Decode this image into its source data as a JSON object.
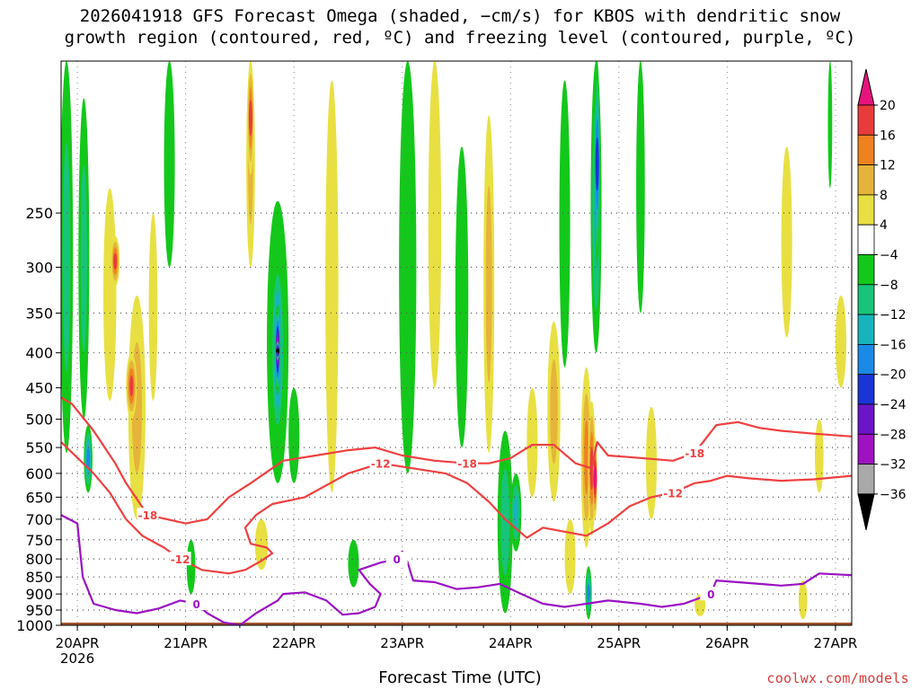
{
  "title": {
    "line1": "2026041918 GFS Forecast Omega (shaded, −cm/s) for KBOS with dendritic snow",
    "line2": "growth region (contoured, red, ºC) and freezing level (contoured, purple, ºC)"
  },
  "credit": "coolwx.com/models",
  "colors": {
    "omega_bins": [
      {
        "from": 20,
        "to": 24,
        "color": "#e8137c"
      },
      {
        "from": 16,
        "to": 20,
        "color": "#ea3b3b"
      },
      {
        "from": 12,
        "to": 16,
        "color": "#ee8220"
      },
      {
        "from": 8,
        "to": 12,
        "color": "#e6b43a"
      },
      {
        "from": 4,
        "to": 8,
        "color": "#e8e042"
      },
      {
        "from": -4,
        "to": 4,
        "color": "#ffffff"
      },
      {
        "from": -8,
        "to": -4,
        "color": "#13c81a"
      },
      {
        "from": -12,
        "to": -8,
        "color": "#18c47a"
      },
      {
        "from": -16,
        "to": -12,
        "color": "#17b4be"
      },
      {
        "from": -20,
        "to": -16,
        "color": "#1b8ae6"
      },
      {
        "from": -24,
        "to": -20,
        "color": "#1a35d6"
      },
      {
        "from": -28,
        "to": -24,
        "color": "#6a16c8"
      },
      {
        "from": -32,
        "to": -28,
        "color": "#9e12c2"
      },
      {
        "from": -36,
        "to": -32,
        "color": "#a9a9a9"
      },
      {
        "from": -40,
        "to": -36,
        "color": "#000000"
      }
    ],
    "dgz": "#ee4040",
    "freezing": "#9a12c2",
    "ground": "#a0522d"
  },
  "chart_data": {
    "type": "heatmap",
    "title": "2026041918 GFS Forecast Omega (shaded, −cm/s) for KBOS with dendritic snow growth region (contoured, red, ºC) and freezing level (contoured, purple, ºC)",
    "xlabel": "Forecast Time (UTC)",
    "ylabel": "",
    "x_unit": "days since 20APR 00Z",
    "x_range": [
      -0.15,
      7.15
    ],
    "y_unit": "hPa",
    "y_range": [
      1000,
      150
    ],
    "y_ticks": [
      "250",
      "300",
      "350",
      "400",
      "450",
      "500",
      "550",
      "600",
      "650",
      "700",
      "750",
      "800",
      "850",
      "900",
      "950",
      "1000"
    ],
    "x_ticks": [
      {
        "day": 0,
        "label": "20APR",
        "sub": "2026"
      },
      {
        "day": 1,
        "label": "21APR",
        "sub": ""
      },
      {
        "day": 2,
        "label": "22APR",
        "sub": ""
      },
      {
        "day": 3,
        "label": "23APR",
        "sub": ""
      },
      {
        "day": 4,
        "label": "24APR",
        "sub": ""
      },
      {
        "day": 5,
        "label": "25APR",
        "sub": ""
      },
      {
        "day": 6,
        "label": "26APR",
        "sub": ""
      },
      {
        "day": 7,
        "label": "27APR",
        "sub": ""
      }
    ],
    "colorbar_labels": [
      "20",
      "16",
      "12",
      "8",
      "4",
      "−4",
      "−8",
      "−12",
      "−16",
      "−20",
      "−24",
      "−28",
      "−32",
      "−36"
    ],
    "omega_features": [
      {
        "day": -0.1,
        "p_top": 150,
        "p_bot": 560,
        "hw": 0.06,
        "value": -10
      },
      {
        "day": 0.06,
        "p_top": 170,
        "p_bot": 500,
        "hw": 0.05,
        "value": -9
      },
      {
        "day": 0.1,
        "p_top": 510,
        "p_bot": 640,
        "hw": 0.04,
        "value": -20
      },
      {
        "day": 0.3,
        "p_top": 230,
        "p_bot": 470,
        "hw": 0.06,
        "value": 8
      },
      {
        "day": 0.35,
        "p_top": 270,
        "p_bot": 320,
        "hw": 0.04,
        "value": 18
      },
      {
        "day": 0.55,
        "p_top": 330,
        "p_bot": 700,
        "hw": 0.08,
        "value": 10
      },
      {
        "day": 0.5,
        "p_top": 400,
        "p_bot": 500,
        "hw": 0.05,
        "value": 17
      },
      {
        "day": 0.7,
        "p_top": 250,
        "p_bot": 470,
        "hw": 0.04,
        "value": 6
      },
      {
        "day": 0.85,
        "p_top": 150,
        "p_bot": 300,
        "hw": 0.05,
        "value": -6
      },
      {
        "day": 1.05,
        "p_top": 750,
        "p_bot": 900,
        "hw": 0.04,
        "value": -7
      },
      {
        "day": 1.6,
        "p_top": 150,
        "p_bot": 300,
        "hw": 0.04,
        "value": 10
      },
      {
        "day": 1.6,
        "p_top": 150,
        "p_bot": 220,
        "hw": 0.03,
        "value": 18
      },
      {
        "day": 1.85,
        "p_top": 240,
        "p_bot": 620,
        "hw": 0.1,
        "value": -12
      },
      {
        "day": 1.85,
        "p_top": 290,
        "p_bot": 540,
        "hw": 0.06,
        "value": -22
      },
      {
        "day": 1.85,
        "p_top": 340,
        "p_bot": 460,
        "hw": 0.03,
        "value": -34
      },
      {
        "day": 1.85,
        "p_top": 385,
        "p_bot": 410,
        "hw": 0.015,
        "value": -38
      },
      {
        "day": 1.7,
        "p_top": 700,
        "p_bot": 830,
        "hw": 0.06,
        "value": 8
      },
      {
        "day": 2.0,
        "p_top": 450,
        "p_bot": 620,
        "hw": 0.05,
        "value": -8
      },
      {
        "day": 2.35,
        "p_top": 160,
        "p_bot": 640,
        "hw": 0.06,
        "value": 5
      },
      {
        "day": 2.55,
        "p_top": 750,
        "p_bot": 880,
        "hw": 0.05,
        "value": -8
      },
      {
        "day": 3.05,
        "p_top": 150,
        "p_bot": 600,
        "hw": 0.08,
        "value": -7
      },
      {
        "day": 3.3,
        "p_top": 150,
        "p_bot": 450,
        "hw": 0.06,
        "value": 6
      },
      {
        "day": 3.55,
        "p_top": 200,
        "p_bot": 550,
        "hw": 0.06,
        "value": -7
      },
      {
        "day": 3.8,
        "p_top": 180,
        "p_bot": 560,
        "hw": 0.05,
        "value": 9
      },
      {
        "day": 3.95,
        "p_top": 520,
        "p_bot": 960,
        "hw": 0.07,
        "value": -10
      },
      {
        "day": 4.05,
        "p_top": 600,
        "p_bot": 780,
        "hw": 0.05,
        "value": -14
      },
      {
        "day": 4.2,
        "p_top": 450,
        "p_bot": 650,
        "hw": 0.05,
        "value": 6
      },
      {
        "day": 4.4,
        "p_top": 360,
        "p_bot": 660,
        "hw": 0.06,
        "value": 10
      },
      {
        "day": 4.5,
        "p_top": 160,
        "p_bot": 420,
        "hw": 0.05,
        "value": -6
      },
      {
        "day": 4.55,
        "p_top": 700,
        "p_bot": 900,
        "hw": 0.05,
        "value": 6
      },
      {
        "day": 4.7,
        "p_top": 420,
        "p_bot": 770,
        "hw": 0.05,
        "value": 14
      },
      {
        "day": 4.75,
        "p_top": 470,
        "p_bot": 740,
        "hw": 0.035,
        "value": 18
      },
      {
        "day": 4.78,
        "p_top": 530,
        "p_bot": 700,
        "hw": 0.02,
        "value": 21
      },
      {
        "day": 4.79,
        "p_top": 150,
        "p_bot": 400,
        "hw": 0.05,
        "value": -14
      },
      {
        "day": 4.8,
        "p_top": 150,
        "p_bot": 300,
        "hw": 0.025,
        "value": -22
      },
      {
        "day": 4.72,
        "p_top": 820,
        "p_bot": 980,
        "hw": 0.03,
        "value": -20
      },
      {
        "day": 5.2,
        "p_top": 150,
        "p_bot": 350,
        "hw": 0.04,
        "value": -8
      },
      {
        "day": 5.3,
        "p_top": 480,
        "p_bot": 700,
        "hw": 0.05,
        "value": 5
      },
      {
        "day": 5.75,
        "p_top": 900,
        "p_bot": 970,
        "hw": 0.05,
        "value": 8
      },
      {
        "day": 6.55,
        "p_top": 200,
        "p_bot": 380,
        "hw": 0.05,
        "value": 5
      },
      {
        "day": 6.85,
        "p_top": 500,
        "p_bot": 640,
        "hw": 0.04,
        "value": 7
      },
      {
        "day": 6.7,
        "p_top": 860,
        "p_bot": 980,
        "hw": 0.04,
        "value": 8
      },
      {
        "day": 6.95,
        "p_top": 150,
        "p_bot": 230,
        "hw": 0.02,
        "value": -6
      },
      {
        "day": 7.05,
        "p_top": 330,
        "p_bot": 450,
        "hw": 0.05,
        "value": 5
      }
    ],
    "dgz_contours": [
      {
        "level": -12,
        "label": "-12",
        "points": [
          [
            -0.15,
            540
          ],
          [
            0.15,
            600
          ],
          [
            0.3,
            640
          ],
          [
            0.45,
            700
          ],
          [
            0.6,
            740
          ],
          [
            0.8,
            770
          ],
          [
            0.95,
            800
          ],
          [
            1.15,
            830
          ],
          [
            1.4,
            840
          ],
          [
            1.55,
            830
          ],
          [
            1.7,
            805
          ],
          [
            1.8,
            785
          ],
          [
            1.75,
            770
          ],
          [
            1.6,
            760
          ],
          [
            1.55,
            720
          ],
          [
            1.65,
            690
          ],
          [
            1.8,
            665
          ],
          [
            2.1,
            650
          ],
          [
            2.5,
            600
          ],
          [
            2.8,
            580
          ],
          [
            3.1,
            590
          ],
          [
            3.4,
            600
          ],
          [
            3.6,
            620
          ],
          [
            3.8,
            660
          ],
          [
            3.95,
            700
          ],
          [
            4.15,
            745
          ],
          [
            4.3,
            720
          ],
          [
            4.5,
            730
          ],
          [
            4.7,
            740
          ],
          [
            4.9,
            710
          ],
          [
            5.1,
            670
          ],
          [
            5.3,
            650
          ],
          [
            5.5,
            640
          ],
          [
            5.7,
            620
          ],
          [
            5.85,
            615
          ],
          [
            6.0,
            605
          ],
          [
            6.2,
            610
          ],
          [
            6.5,
            615
          ],
          [
            6.8,
            612
          ],
          [
            7.15,
            605
          ]
        ]
      },
      {
        "level": -18,
        "label": "-18",
        "points": [
          [
            -0.15,
            465
          ],
          [
            -0.05,
            475
          ],
          [
            0.15,
            520
          ],
          [
            0.35,
            580
          ],
          [
            0.45,
            620
          ],
          [
            0.65,
            690
          ],
          [
            1.0,
            710
          ],
          [
            1.2,
            700
          ],
          [
            1.4,
            650
          ],
          [
            1.6,
            620
          ],
          [
            1.9,
            575
          ],
          [
            2.2,
            565
          ],
          [
            2.5,
            555
          ],
          [
            2.75,
            550
          ],
          [
            3.0,
            565
          ],
          [
            3.3,
            575
          ],
          [
            3.6,
            580
          ],
          [
            3.8,
            580
          ],
          [
            4.0,
            570
          ],
          [
            4.2,
            545
          ],
          [
            4.4,
            545
          ],
          [
            4.6,
            580
          ],
          [
            4.75,
            590
          ],
          [
            4.8,
            540
          ],
          [
            4.9,
            565
          ],
          [
            5.1,
            568
          ],
          [
            5.5,
            575
          ],
          [
            5.7,
            560
          ],
          [
            5.9,
            510
          ],
          [
            6.1,
            505
          ],
          [
            6.3,
            515
          ],
          [
            6.5,
            520
          ],
          [
            6.8,
            525
          ],
          [
            7.15,
            530
          ]
        ]
      }
    ],
    "freezing_contours": [
      {
        "level": 0,
        "label": "0",
        "points": [
          [
            -0.15,
            690
          ],
          [
            0.0,
            710
          ],
          [
            0.05,
            850
          ],
          [
            0.15,
            930
          ],
          [
            0.35,
            950
          ],
          [
            0.55,
            960
          ],
          [
            0.75,
            945
          ],
          [
            0.95,
            920
          ],
          [
            1.1,
            930
          ],
          [
            1.2,
            960
          ],
          [
            1.35,
            990
          ],
          [
            1.5,
            1000
          ],
          [
            1.65,
            960
          ],
          [
            1.85,
            920
          ],
          [
            1.9,
            900
          ],
          [
            2.1,
            895
          ],
          [
            2.3,
            920
          ],
          [
            2.45,
            965
          ],
          [
            2.6,
            960
          ],
          [
            2.75,
            940
          ],
          [
            2.8,
            900
          ],
          [
            2.7,
            870
          ],
          [
            2.6,
            830
          ],
          [
            2.8,
            810
          ],
          [
            2.95,
            800
          ],
          [
            3.0,
            780
          ],
          [
            3.05,
            810
          ],
          [
            3.1,
            860
          ],
          [
            3.3,
            865
          ],
          [
            3.5,
            885
          ],
          [
            3.7,
            880
          ],
          [
            3.9,
            870
          ],
          [
            4.1,
            900
          ],
          [
            4.3,
            930
          ],
          [
            4.5,
            940
          ],
          [
            4.7,
            930
          ],
          [
            4.9,
            920
          ],
          [
            5.2,
            930
          ],
          [
            5.4,
            940
          ],
          [
            5.6,
            930
          ],
          [
            5.85,
            900
          ],
          [
            5.9,
            860
          ],
          [
            6.1,
            865
          ],
          [
            6.3,
            870
          ],
          [
            6.5,
            875
          ],
          [
            6.7,
            870
          ],
          [
            6.85,
            840
          ],
          [
            7.15,
            845
          ]
        ]
      }
    ]
  }
}
